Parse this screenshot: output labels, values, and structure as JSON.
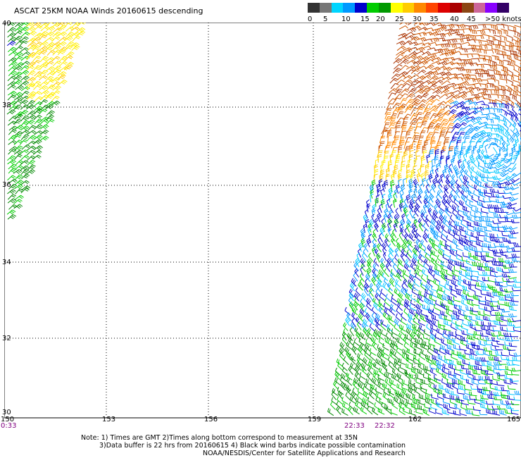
{
  "title": "ASCAT 25KM NOAA Winds 20160615 descending",
  "legend": {
    "colors": [
      "#333333",
      "#777777",
      "#00d5ff",
      "#0099ff",
      "#0000cc",
      "#00cc00",
      "#009900",
      "#ffff00",
      "#ffcc00",
      "#ff8800",
      "#ff4400",
      "#dd0000",
      "#aa0000",
      "#8b4513",
      "#cc6699",
      "#8800ff",
      "#330066"
    ],
    "labels": [
      "0",
      "5",
      "10",
      "15",
      "20",
      "25",
      "30",
      "35",
      "40",
      "45",
      ">50 knots"
    ]
  },
  "map": {
    "lat_labels": [
      "40",
      "38",
      "36",
      "34",
      "32",
      "30"
    ],
    "lon_labels": [
      "150",
      "153",
      "156",
      "159",
      "162",
      "165"
    ],
    "time_labels": [
      "0:33",
      "22:33",
      "22:32"
    ]
  },
  "notes": {
    "line1": "Note: 1) Times are GMT 2)Times along bottom correspond to measurement at 35N",
    "line2": "3)Data buffer is 22 hrs from 20160615 4) Black wind barbs indicate possible contamination",
    "line3": "NOAA/NESDIS/Center for Satellite Applications and Research"
  }
}
